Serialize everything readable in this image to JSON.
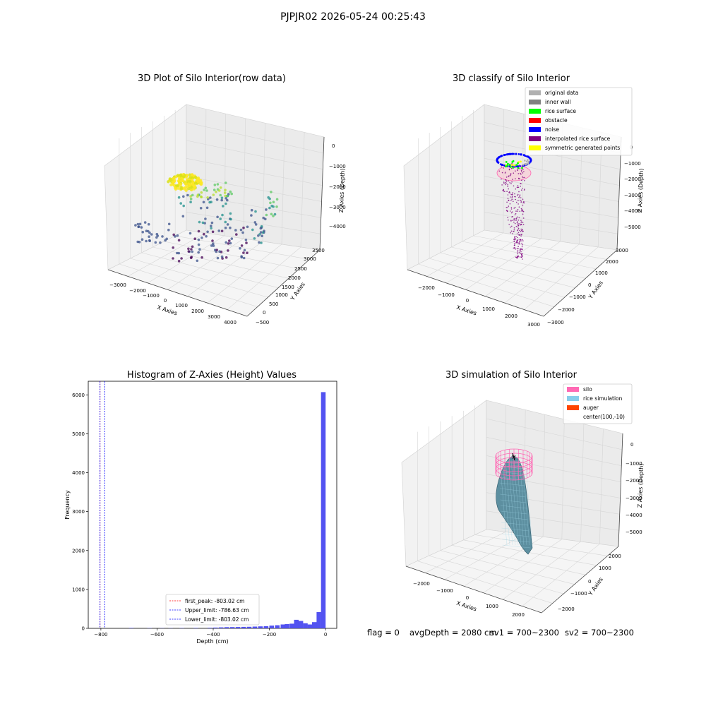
{
  "suptitle": "PJPJR02 2026-05-24 00:25:43",
  "footer": {
    "flag": "flag = 0",
    "avg_depth": "avgDepth = 2080 cm",
    "sv1": "sv1 = 700~2300",
    "sv2": "sv2 = 700~2300"
  },
  "colors": {
    "original_data": "#b0b0b0",
    "inner_wall": "#808080",
    "rice_surface": "#00ff00",
    "obstacle": "#ff0000",
    "noise": "#0000ff",
    "interpolated": "#800080",
    "symmetric": "#ffff00",
    "silo": "#ff69b4",
    "rice_sim": "#87ceeb",
    "auger": "#ff4500",
    "hist_bar": "#4a4af0"
  },
  "chart_data": [
    {
      "type": "scatter",
      "title": "3D Plot of Silo Interior(row data)",
      "xlabel": "X Axies",
      "ylabel": "Y Axies",
      "zlabel": "Z Axies (Depth)",
      "x_ticks": [
        "−3000",
        "−2000",
        "−1000",
        "0",
        "1000",
        "2000",
        "3000",
        "4000"
      ],
      "y_ticks": [
        "−500",
        "0",
        "500",
        "1000",
        "1500",
        "2000",
        "2500",
        "3000",
        "3500"
      ],
      "z_ticks": [
        "0",
        "−1000",
        "−2000",
        "−3000",
        "−4000"
      ]
    },
    {
      "type": "scatter",
      "title": "3D classify of Silo Interior",
      "xlabel": "X Axies",
      "ylabel": "Y Axies",
      "zlabel": "Z Axies (Depth)",
      "x_ticks": [
        "−2000",
        "−1000",
        "0",
        "1000",
        "2000",
        "3000"
      ],
      "y_ticks": [
        "−3000",
        "−2000",
        "−1000",
        "0",
        "1000",
        "2000",
        "3000"
      ],
      "z_ticks": [
        "0",
        "−1000",
        "−2000",
        "−3000",
        "−4000",
        "−5000"
      ],
      "legend": [
        "original data",
        "inner wall",
        "rice surface",
        "obstacle",
        "noise",
        "interpolated rice surface",
        "symmetric generated points"
      ],
      "legend_position": "top-right"
    },
    {
      "type": "bar",
      "title": "Histogram of Z-Axies (Height) Values",
      "xlabel": "Depth (cm)",
      "ylabel": "Frequency",
      "xlim": [
        -845,
        40
      ],
      "ylim": [
        0,
        6350
      ],
      "x_ticks": [
        -800,
        -600,
        -400,
        -200,
        0
      ],
      "y_ticks": [
        0,
        1000,
        2000,
        3000,
        4000,
        5000,
        6000
      ],
      "bin_width": 16.3,
      "bins": [
        {
          "x": -700,
          "count": 10
        },
        {
          "x": -635,
          "count": 8
        },
        {
          "x": -590,
          "count": 6
        },
        {
          "x": -560,
          "count": 5
        },
        {
          "x": -520,
          "count": 8
        },
        {
          "x": -470,
          "count": 10
        },
        {
          "x": -420,
          "count": 15
        },
        {
          "x": -400,
          "count": 20
        },
        {
          "x": -380,
          "count": 25
        },
        {
          "x": -360,
          "count": 30
        },
        {
          "x": -340,
          "count": 32
        },
        {
          "x": -320,
          "count": 35
        },
        {
          "x": -300,
          "count": 38
        },
        {
          "x": -280,
          "count": 40
        },
        {
          "x": -260,
          "count": 45
        },
        {
          "x": -240,
          "count": 50
        },
        {
          "x": -220,
          "count": 55
        },
        {
          "x": -200,
          "count": 70
        },
        {
          "x": -180,
          "count": 80
        },
        {
          "x": -160,
          "count": 100
        },
        {
          "x": -145,
          "count": 110
        },
        {
          "x": -128,
          "count": 120
        },
        {
          "x": -112,
          "count": 220
        },
        {
          "x": -96,
          "count": 190
        },
        {
          "x": -80,
          "count": 130
        },
        {
          "x": -64,
          "count": 100
        },
        {
          "x": -48,
          "count": 160
        },
        {
          "x": -32,
          "count": 420
        },
        {
          "x": -16,
          "count": 6070
        }
      ],
      "lines": [
        {
          "label": "first_peak: -803.02 cm",
          "x": -803.02,
          "color": "#ff0000"
        },
        {
          "label": "Upper_limit: -786.63 cm",
          "x": -786.63,
          "color": "#0000ff"
        },
        {
          "label": "Lower_limit: -803.02 cm",
          "x": -803.02,
          "color": "#0000ff"
        }
      ],
      "legend_position": "lower-center"
    },
    {
      "type": "surface",
      "title": "3D simulation of Silo Interior",
      "xlabel": "X Axies",
      "ylabel": "Y Axies",
      "zlabel": "Z Axies (Depth)",
      "x_ticks": [
        "−2000",
        "−1000",
        "0",
        "1000",
        "2000"
      ],
      "y_ticks": [
        "−2000",
        "−1000",
        "0",
        "1000",
        "2000"
      ],
      "z_ticks": [
        "0",
        "−1000",
        "−2000",
        "−3000",
        "−4000",
        "−5000"
      ],
      "legend": [
        "silo",
        "rice simulation",
        "auger",
        "center(100,-10)"
      ],
      "legend_position": "top-right"
    }
  ]
}
